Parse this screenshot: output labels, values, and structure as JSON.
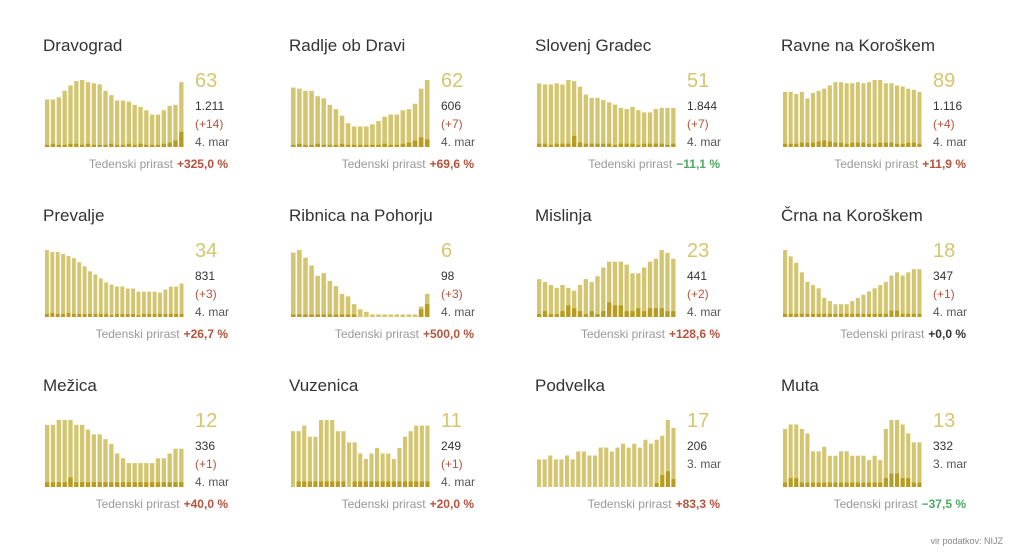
{
  "colors": {
    "bar": "#d4c670",
    "bar_highlight": "#b79c1e",
    "up": "#b5533c",
    "down": "#4fa864",
    "flat": "#333333"
  },
  "growth_label": "Tedenski prirast",
  "source": "vir podatkov: NIJZ",
  "chart_data": [
    {
      "type": "bar",
      "title": "Dravograd",
      "value": "63",
      "total": "1.211",
      "delta": "(+14)",
      "date": "4. mar",
      "growth": "+325,0 %",
      "trend": "up",
      "values": [
        44,
        44,
        46,
        52,
        57,
        61,
        62,
        60,
        59,
        58,
        52,
        48,
        43,
        43,
        42,
        39,
        37,
        34,
        30,
        30,
        34,
        38,
        39,
        60
      ],
      "highlights": [
        2,
        3,
        2,
        2,
        3,
        3,
        2,
        3,
        2,
        2,
        2,
        3,
        2,
        2,
        3,
        2,
        3,
        2,
        2,
        2,
        3,
        4,
        6,
        14
      ]
    },
    {
      "type": "bar",
      "title": "Radlje ob Dravi",
      "value": "62",
      "total": "606",
      "delta": "(+7)",
      "date": "4. mar",
      "growth": "+69,6 %",
      "trend": "up",
      "values": [
        55,
        54,
        52,
        52,
        47,
        45,
        39,
        35,
        29,
        22,
        19,
        19,
        19,
        21,
        24,
        28,
        30,
        30,
        34,
        35,
        40,
        54,
        62
      ],
      "highlights": [
        2,
        3,
        2,
        2,
        3,
        2,
        2,
        2,
        3,
        2,
        2,
        2,
        2,
        2,
        2,
        3,
        2,
        2,
        3,
        4,
        6,
        9,
        7
      ]
    },
    {
      "type": "bar",
      "title": "Slovenj Gradec",
      "value": "51",
      "total": "1.844",
      "delta": "(+7)",
      "date": "4. mar",
      "growth": "−11,1 %",
      "trend": "down",
      "values": [
        57,
        56,
        56,
        57,
        56,
        60,
        59,
        54,
        47,
        44,
        44,
        42,
        40,
        38,
        35,
        34,
        36,
        33,
        31,
        31,
        34,
        35,
        35,
        35
      ],
      "highlights": [
        3,
        3,
        2,
        3,
        3,
        3,
        10,
        4,
        3,
        3,
        3,
        3,
        3,
        2,
        3,
        3,
        3,
        2,
        3,
        3,
        3,
        3,
        2,
        3
      ]
    },
    {
      "type": "bar",
      "title": "Ravne na Koroškem",
      "value": "89",
      "total": "1.116",
      "delta": "(+4)",
      "date": "4. mar",
      "growth": "+11,9 %",
      "trend": "up",
      "values": [
        51,
        51,
        49,
        51,
        45,
        50,
        52,
        54,
        57,
        60,
        60,
        59,
        59,
        60,
        59,
        60,
        62,
        62,
        59,
        59,
        57,
        56,
        54,
        53,
        51
      ],
      "highlights": [
        3,
        3,
        3,
        4,
        4,
        4,
        5,
        6,
        5,
        4,
        4,
        3,
        4,
        4,
        4,
        3,
        3,
        4,
        4,
        4,
        3,
        3,
        4,
        4,
        3
      ]
    },
    {
      "type": "bar",
      "title": "Prevalje",
      "value": "34",
      "total": "831",
      "delta": "(+3)",
      "date": "4. mar",
      "growth": "+26,7 %",
      "trend": "up",
      "values": [
        66,
        64,
        64,
        62,
        60,
        58,
        54,
        50,
        45,
        42,
        38,
        34,
        32,
        30,
        30,
        28,
        28,
        25,
        25,
        25,
        25,
        24,
        27,
        30,
        30,
        33
      ],
      "highlights": [
        3,
        4,
        3,
        3,
        4,
        3,
        3,
        3,
        3,
        3,
        3,
        3,
        2,
        3,
        3,
        3,
        3,
        2,
        3,
        3,
        3,
        3,
        3,
        3,
        3,
        3
      ]
    },
    {
      "type": "bar",
      "title": "Ribnica na Pohorju",
      "value": "6",
      "total": "98",
      "delta": "(+3)",
      "date": "4. mar",
      "growth": "+500,0 %",
      "trend": "up",
      "values": [
        25,
        26,
        23,
        20,
        16,
        17,
        14,
        12,
        9,
        8,
        5,
        3,
        2,
        1,
        1,
        1,
        1,
        1,
        1,
        1,
        1,
        4,
        9
      ],
      "highlights": [
        1,
        1,
        1,
        1,
        1,
        1,
        1,
        1,
        1,
        1,
        1,
        0,
        0,
        0,
        0,
        0,
        0,
        0,
        0,
        0,
        0,
        3,
        5
      ]
    },
    {
      "type": "bar",
      "title": "Mislinja",
      "value": "23",
      "total": "441",
      "delta": "(+2)",
      "date": "4. mar",
      "growth": "+128,6 %",
      "trend": "up",
      "values": [
        13,
        12,
        11,
        10,
        11,
        10,
        9,
        11,
        13,
        12,
        14,
        17,
        19,
        19,
        19,
        18,
        15,
        15,
        17,
        19,
        20,
        23,
        22,
        20
      ],
      "highlights": [
        1,
        2,
        1,
        1,
        2,
        4,
        3,
        2,
        1,
        2,
        1,
        2,
        5,
        4,
        4,
        2,
        2,
        3,
        2,
        3,
        3,
        3,
        2,
        2
      ]
    },
    {
      "type": "bar",
      "title": "Črna na Koroškem",
      "value": "18",
      "total": "347",
      "delta": "(+1)",
      "date": "4. mar",
      "growth": "+0,0 %",
      "trend": "flat",
      "values": [
        21,
        19,
        17,
        14,
        11,
        10,
        9,
        6,
        5,
        4,
        4,
        4,
        5,
        6,
        7,
        8,
        9,
        10,
        11,
        13,
        14,
        13,
        14,
        15,
        15
      ],
      "highlights": [
        1,
        1,
        1,
        1,
        1,
        1,
        1,
        1,
        1,
        1,
        1,
        1,
        1,
        1,
        1,
        1,
        1,
        1,
        1,
        2,
        2,
        1,
        1,
        1,
        1
      ]
    },
    {
      "type": "bar",
      "title": "Mežica",
      "value": "12",
      "total": "336",
      "delta": "(+1)",
      "date": "4. mar",
      "growth": "+40,0 %",
      "trend": "up",
      "values": [
        13,
        13,
        14,
        14,
        14,
        13,
        13,
        12,
        11,
        11,
        10,
        9,
        7,
        6,
        5,
        5,
        5,
        5,
        5,
        6,
        6,
        7,
        8,
        8
      ],
      "highlights": [
        1,
        1,
        1,
        1,
        2,
        1,
        1,
        1,
        1,
        1,
        1,
        1,
        1,
        1,
        1,
        1,
        1,
        1,
        1,
        1,
        1,
        1,
        1,
        1
      ]
    },
    {
      "type": "bar",
      "title": "Vuzenica",
      "value": "11",
      "total": "249",
      "delta": "(+1)",
      "date": "4. mar",
      "growth": "+20,0 %",
      "trend": "up",
      "values": [
        10,
        10,
        11,
        9,
        9,
        12,
        12,
        12,
        10,
        10,
        8,
        8,
        6,
        5,
        6,
        7,
        6,
        6,
        5,
        7,
        9,
        10,
        11,
        11,
        11
      ],
      "highlights": [
        0,
        1,
        1,
        1,
        1,
        1,
        1,
        1,
        1,
        1,
        0,
        1,
        1,
        1,
        1,
        1,
        1,
        1,
        1,
        1,
        1,
        1,
        1,
        1,
        1
      ]
    },
    {
      "type": "bar",
      "title": "Podvelka",
      "value": "17",
      "total": "206",
      "delta": "",
      "date": "3. mar",
      "growth": "+83,3 %",
      "trend": "up",
      "values": [
        7,
        7,
        8,
        7,
        7,
        8,
        7,
        9,
        9,
        8,
        8,
        10,
        10,
        9,
        10,
        11,
        10,
        11,
        10,
        12,
        11,
        12,
        13,
        17,
        15
      ],
      "highlights": [
        0,
        0,
        0,
        0,
        0,
        0,
        0,
        0,
        0,
        0,
        0,
        0,
        0,
        0,
        0,
        0,
        0,
        0,
        0,
        0,
        0,
        1,
        3,
        4,
        2
      ]
    },
    {
      "type": "bar",
      "title": "Muta",
      "value": "13",
      "total": "332",
      "delta": "",
      "date": "3. mar",
      "growth": "−37,5 %",
      "trend": "down",
      "values": [
        13,
        14,
        14,
        13,
        12,
        8,
        8,
        9,
        7,
        7,
        8,
        8,
        7,
        7,
        7,
        6,
        7,
        6,
        13,
        15,
        15,
        14,
        12,
        10,
        10
      ],
      "highlights": [
        1,
        2,
        2,
        1,
        1,
        1,
        1,
        1,
        1,
        1,
        1,
        1,
        1,
        1,
        1,
        1,
        1,
        1,
        2,
        3,
        3,
        2,
        2,
        1,
        1
      ]
    }
  ]
}
